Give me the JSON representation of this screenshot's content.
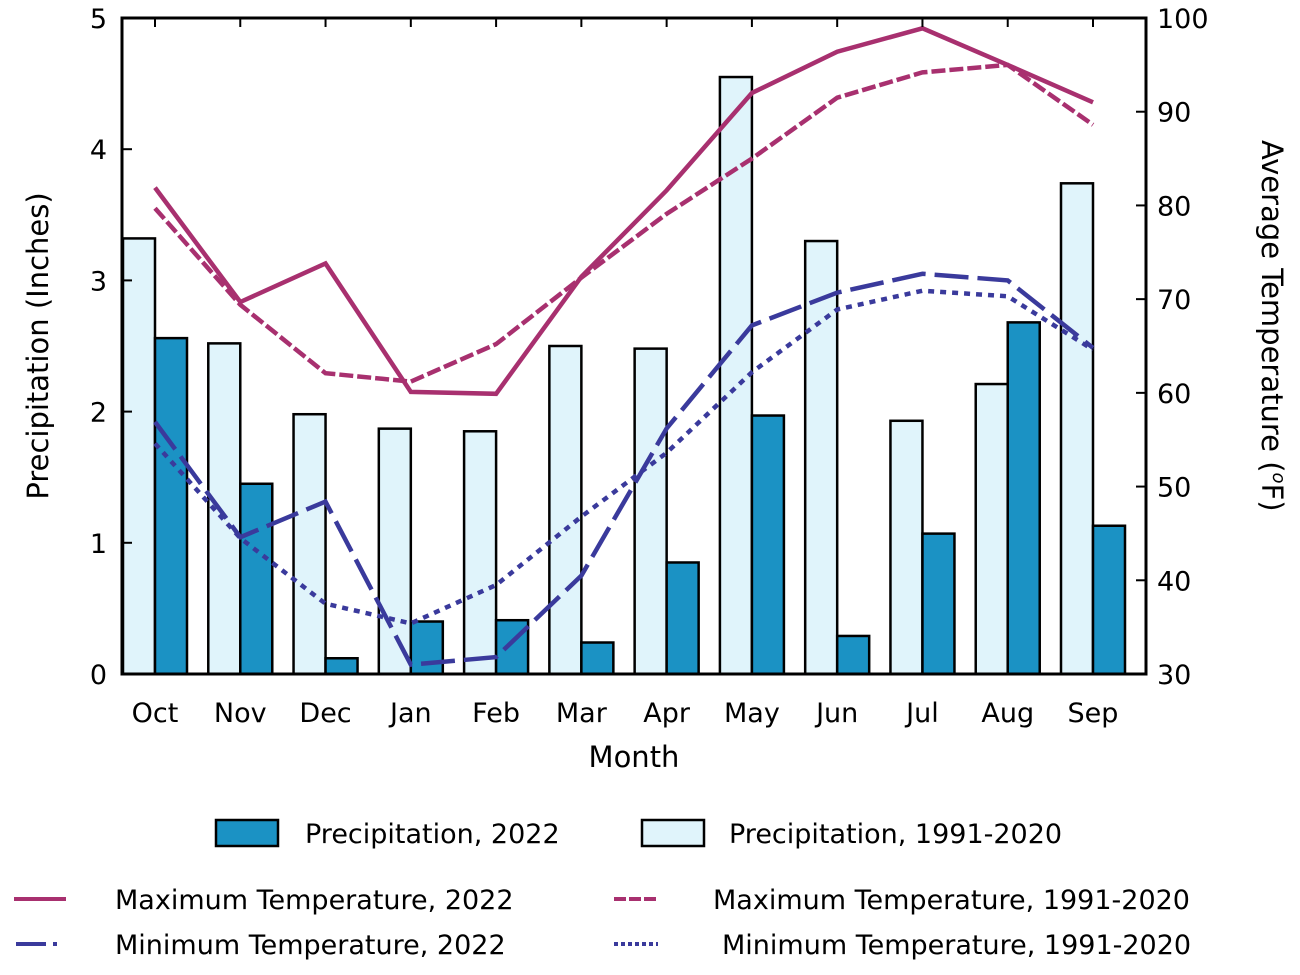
{
  "chart_data": {
    "type": "bar",
    "title": "",
    "xlabel": "Month",
    "ylabel": "Precipitation (Inches)",
    "y2label": "Average Temperature (",
    "y2label_unit_sup": "o",
    "y2label_unit_tail": "F)",
    "categories": [
      "Oct",
      "Nov",
      "Dec",
      "Jan",
      "Feb",
      "Mar",
      "Apr",
      "May",
      "Jun",
      "Jul",
      "Aug",
      "Sep"
    ],
    "ylim": [
      0,
      5
    ],
    "yticks": [
      "0",
      "1",
      "2",
      "3",
      "4",
      "5"
    ],
    "y2lim": [
      30,
      100
    ],
    "y2ticks": [
      "30",
      "40",
      "50",
      "60",
      "70",
      "80",
      "90",
      "100"
    ],
    "grid": false,
    "legend_placement": "bottom",
    "bar_series": [
      {
        "name": "Precipitation, 1991-2020",
        "axis": "left",
        "color": "#E0F4FB",
        "values": [
          3.32,
          2.52,
          1.98,
          1.87,
          1.85,
          2.5,
          2.48,
          4.55,
          3.3,
          1.93,
          2.21,
          3.74
        ]
      },
      {
        "name": "Precipitation, 2022",
        "axis": "left",
        "color": "#1B92C4",
        "values": [
          2.56,
          1.45,
          0.12,
          0.4,
          0.41,
          0.24,
          0.85,
          1.97,
          0.29,
          1.07,
          2.68,
          1.13
        ]
      }
    ],
    "line_series": [
      {
        "name": "Maximum Temperature, 2022",
        "axis": "right",
        "color": "#A8306F",
        "style": "solid",
        "values": [
          81.9,
          69.7,
          73.8,
          60.1,
          59.9,
          72.4,
          81.6,
          92.0,
          96.4,
          98.9,
          95.0,
          91.0
        ]
      },
      {
        "name": "Maximum Temperature, 1991-2020",
        "axis": "right",
        "color": "#A8306F",
        "style": "dashed",
        "values": [
          79.7,
          69.4,
          62.1,
          61.2,
          65.2,
          72.3,
          79.1,
          85.0,
          91.5,
          94.2,
          95.0,
          88.6
        ]
      },
      {
        "name": "Minimum Temperature, 2022",
        "axis": "right",
        "color": "#3A3A9C",
        "style": "long-dash",
        "values": [
          56.9,
          44.6,
          48.4,
          31.0,
          31.8,
          40.5,
          56.2,
          67.2,
          70.7,
          72.7,
          72.0,
          64.8
        ]
      },
      {
        "name": "Minimum Temperature, 1991-2020",
        "axis": "right",
        "color": "#3A3A9C",
        "style": "dotted",
        "values": [
          54.6,
          44.5,
          37.5,
          35.4,
          39.5,
          46.8,
          53.6,
          62.2,
          68.9,
          70.9,
          70.3,
          64.6
        ]
      }
    ],
    "legend": {
      "row1": [
        "Precipitation, 2022",
        "Precipitation, 1991-2020"
      ],
      "row2": [
        "Maximum Temperature, 2022",
        "Maximum Temperature, 1991-2020"
      ],
      "row3": [
        "Minimum Temperature, 2022",
        "Minimum Temperature, 1991-2020"
      ]
    }
  }
}
